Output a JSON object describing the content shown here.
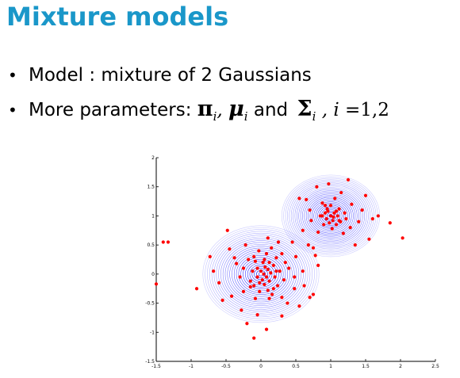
{
  "slide": {
    "title": "Mixture models",
    "bullet1": {
      "marker": "•",
      "text": "Model : mixture of 2 Gaussians"
    },
    "bullet2": {
      "marker": "•",
      "prefix": "More parameters: ",
      "pi": "π",
      "pi_sub": "i",
      "sep": ", ",
      "mu": "μ",
      "mu_sub": "i",
      "and": " and ",
      "sigma": "Σ",
      "sigma_sub": "i",
      "comma": " , ",
      "index": "i",
      "range": " =1,2"
    }
  },
  "chart_data": {
    "type": "scatter",
    "title": "",
    "xlabel": "",
    "ylabel": "",
    "xlim": [
      -1.5,
      2.5
    ],
    "ylim": [
      -1.5,
      2
    ],
    "x_ticks": [
      "-1.5",
      "-1",
      "-0.5",
      "0",
      "0.5",
      "1",
      "1.5",
      "2",
      "2.5"
    ],
    "y_ticks": [
      "-1.5",
      "-1",
      "-0.5",
      "0",
      "0.5",
      "1",
      "1.5",
      "2"
    ],
    "grid": false,
    "point_color": "#ff0000",
    "contour_color": "#0000ff",
    "components": [
      {
        "mean": [
          0,
          0
        ],
        "std": [
          0.32,
          0.32
        ]
      },
      {
        "mean": [
          1,
          1
        ],
        "std": [
          0.27,
          0.27
        ]
      }
    ],
    "series": [
      {
        "values": [
          [
            -1.4,
            0.55
          ],
          [
            -1.33,
            0.55
          ],
          [
            -1.5,
            -0.17
          ],
          [
            -0.92,
            -0.25
          ],
          [
            -0.73,
            0.3
          ],
          [
            -0.68,
            0.05
          ],
          [
            -0.48,
            0.75
          ],
          [
            -0.45,
            0.43
          ],
          [
            -0.6,
            -0.15
          ],
          [
            -0.55,
            -0.45
          ],
          [
            -0.42,
            -0.38
          ],
          [
            -0.35,
            0.18
          ],
          [
            -0.3,
            -0.05
          ],
          [
            -0.28,
            -0.62
          ],
          [
            -0.22,
            0.5
          ],
          [
            -0.25,
            -0.3
          ],
          [
            -0.18,
            0.25
          ],
          [
            -0.15,
            -0.12
          ],
          [
            -0.12,
            0.05
          ],
          [
            -0.1,
            0.3
          ],
          [
            -0.1,
            -0.2
          ],
          [
            -0.08,
            -0.42
          ],
          [
            -0.05,
            0.1
          ],
          [
            -0.05,
            -0.05
          ],
          [
            -0.03,
            0.4
          ],
          [
            -0.02,
            -0.3
          ],
          [
            0,
            0.05
          ],
          [
            0.02,
            -0.1
          ],
          [
            0.03,
            0.2
          ],
          [
            0.04,
            0
          ],
          [
            0.05,
            -0.18
          ],
          [
            0.06,
            0.12
          ],
          [
            0.08,
            -0.05
          ],
          [
            0.08,
            0.35
          ],
          [
            0.1,
            0.08
          ],
          [
            0.1,
            -0.28
          ],
          [
            0.12,
            0.2
          ],
          [
            0.12,
            -0.12
          ],
          [
            0.14,
            0.02
          ],
          [
            0.15,
            0.45
          ],
          [
            0.16,
            -0.35
          ],
          [
            0.18,
            0.15
          ],
          [
            0.2,
            -0.05
          ],
          [
            0.22,
            0.28
          ],
          [
            0.24,
            -0.2
          ],
          [
            0.25,
            0.55
          ],
          [
            0.27,
            0.05
          ],
          [
            0.3,
            -0.4
          ],
          [
            0.3,
            0.35
          ],
          [
            0.33,
            -0.1
          ],
          [
            0.35,
            0.2
          ],
          [
            0.38,
            -0.5
          ],
          [
            0.4,
            0.1
          ],
          [
            0.45,
            0.55
          ],
          [
            0.48,
            -0.25
          ],
          [
            0.5,
            0.3
          ],
          [
            0.55,
            -0.55
          ],
          [
            0.6,
            0.05
          ],
          [
            0.62,
            -0.2
          ],
          [
            0.7,
            -0.4
          ],
          [
            0.75,
            -0.35
          ],
          [
            0.68,
            0.5
          ],
          [
            0.78,
            0.32
          ],
          [
            0.82,
            0.15
          ],
          [
            -0.2,
            -0.85
          ],
          [
            -0.05,
            -0.7
          ],
          [
            0.3,
            -0.72
          ],
          [
            0.08,
            -0.95
          ],
          [
            -0.1,
            -1.1
          ],
          [
            0.1,
            0.62
          ],
          [
            -0.38,
            0.28
          ],
          [
            0.48,
            -0.05
          ],
          [
            -0.15,
            -0.22
          ],
          [
            0.05,
            0.25
          ],
          [
            -0.02,
            -0.15
          ],
          [
            0.18,
            -0.25
          ],
          [
            -0.25,
            0.1
          ],
          [
            0.22,
            0.05
          ],
          [
            -0.08,
            0.22
          ],
          [
            0.12,
            -0.42
          ],
          [
            0.7,
            1.1
          ],
          [
            0.72,
            0.92
          ],
          [
            0.65,
            1.28
          ],
          [
            0.8,
            1.5
          ],
          [
            0.82,
            0.72
          ],
          [
            0.85,
            1.0
          ],
          [
            0.88,
            1.22
          ],
          [
            0.9,
            0.85
          ],
          [
            0.92,
            1.05
          ],
          [
            0.94,
            0.95
          ],
          [
            0.95,
            1.12
          ],
          [
            0.97,
            1.55
          ],
          [
            0.98,
            0.88
          ],
          [
            1.0,
            1.0
          ],
          [
            1.0,
            1.18
          ],
          [
            1.02,
            0.78
          ],
          [
            1.03,
            0.92
          ],
          [
            1.05,
            1.05
          ],
          [
            1.06,
            1.3
          ],
          [
            1.08,
            0.85
          ],
          [
            1.1,
            1.0
          ],
          [
            1.12,
            1.12
          ],
          [
            1.14,
            0.9
          ],
          [
            1.15,
            1.4
          ],
          [
            1.18,
            0.7
          ],
          [
            1.2,
            1.05
          ],
          [
            1.22,
            0.95
          ],
          [
            1.25,
            1.62
          ],
          [
            1.28,
            0.8
          ],
          [
            1.3,
            1.2
          ],
          [
            1.35,
            0.5
          ],
          [
            1.4,
            0.9
          ],
          [
            1.45,
            1.1
          ],
          [
            1.5,
            1.35
          ],
          [
            1.55,
            0.6
          ],
          [
            1.6,
            0.95
          ],
          [
            1.68,
            1.0
          ],
          [
            0.55,
            1.3
          ],
          [
            0.6,
            0.75
          ],
          [
            1.85,
            0.88
          ],
          [
            2.03,
            0.62
          ],
          [
            0.75,
            0.45
          ],
          [
            0.92,
            1.18
          ],
          [
            1.04,
            0.98
          ],
          [
            0.96,
            1.08
          ],
          [
            1.08,
            1.08
          ],
          [
            0.88,
            1.0
          ],
          [
            1.12,
            0.92
          ]
        ]
      }
    ]
  }
}
